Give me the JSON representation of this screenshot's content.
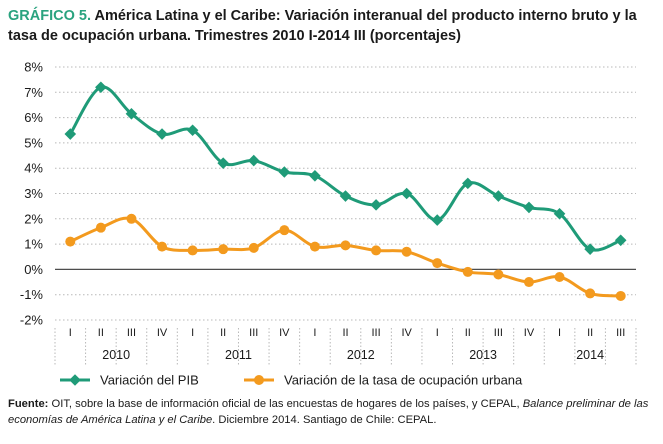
{
  "title": {
    "lead": "GRÁFICO 5.",
    "text": "América Latina y el Caribe: Variación interanual del producto interno bruto y la tasa de ocupación urbana. Trimestres 2010 I-2014 III (porcentajes)"
  },
  "source": {
    "label": "Fuente:",
    "text1": "OIT, sobre la base de información oficial de las encuestas de hogares de los países, y CEPAL,",
    "italic": "Balance preliminar de las economías de América Latina y el Caribe",
    "text2": ". Diciembre 2014. Santiago de Chile: CEPAL."
  },
  "colors": {
    "pib": "#1f9b78",
    "empleo": "#f39a1e",
    "lead": "#2aa37f",
    "grid": "#b8b8b8"
  },
  "chart_data": {
    "type": "line",
    "y_ticks": [
      "8%",
      "7%",
      "6%",
      "5%",
      "4%",
      "3%",
      "2%",
      "1%",
      "0%",
      "-1%",
      "-2%"
    ],
    "ylim": [
      -2,
      8
    ],
    "grid": true,
    "legend_position": "bottom",
    "quarters": [
      "I",
      "II",
      "III",
      "IV",
      "I",
      "II",
      "III",
      "IV",
      "I",
      "II",
      "III",
      "IV",
      "I",
      "II",
      "III",
      "IV",
      "I",
      "II",
      "III"
    ],
    "years": [
      {
        "label": "2010",
        "count": 4
      },
      {
        "label": "2011",
        "count": 4
      },
      {
        "label": "2012",
        "count": 4
      },
      {
        "label": "2013",
        "count": 4
      },
      {
        "label": "2014",
        "count": 3
      }
    ],
    "series": [
      {
        "name": "Variación del PIB",
        "key": "pib",
        "values": [
          5.35,
          7.2,
          6.15,
          5.35,
          5.5,
          4.2,
          4.3,
          3.85,
          3.7,
          2.9,
          2.55,
          3.0,
          1.95,
          3.4,
          2.9,
          2.45,
          2.2,
          0.8,
          1.15
        ]
      },
      {
        "name": "Variación de la tasa de ocupación urbana",
        "key": "empleo",
        "values": [
          1.1,
          1.65,
          2.0,
          0.9,
          0.75,
          0.8,
          0.85,
          1.55,
          0.9,
          0.95,
          0.75,
          0.7,
          0.25,
          -0.1,
          -0.2,
          -0.5,
          -0.3,
          -0.95,
          -1.05
        ]
      }
    ]
  }
}
